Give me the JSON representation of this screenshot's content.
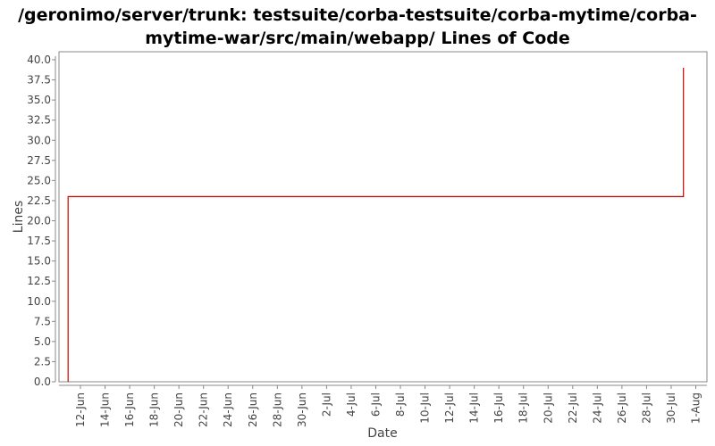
{
  "chart_data": {
    "type": "line",
    "title_line1": "/geronimo/server/trunk: testsuite/corba-testsuite/corba-mytime/corba-",
    "title_line2": "mytime-war/src/main/webapp/ Lines of Code",
    "xlabel": "Date",
    "ylabel": "Lines",
    "ylim": [
      0,
      40
    ],
    "yticks": [
      "0.0",
      "2.5",
      "5.0",
      "7.5",
      "10.0",
      "12.5",
      "15.0",
      "17.5",
      "20.0",
      "22.5",
      "25.0",
      "27.5",
      "30.0",
      "32.5",
      "35.0",
      "37.5",
      "40.0"
    ],
    "xticks": [
      "12-Jun",
      "14-Jun",
      "16-Jun",
      "18-Jun",
      "20-Jun",
      "22-Jun",
      "24-Jun",
      "26-Jun",
      "28-Jun",
      "30-Jun",
      "2-Jul",
      "4-Jul",
      "6-Jul",
      "8-Jul",
      "10-Jul",
      "12-Jul",
      "14-Jul",
      "16-Jul",
      "18-Jul",
      "20-Jul",
      "22-Jul",
      "24-Jul",
      "26-Jul",
      "28-Jul",
      "30-Jul",
      "1-Aug"
    ],
    "series": [
      {
        "color": "#cc0000",
        "step": true,
        "points": [
          {
            "x": "11-Jun",
            "y": 0
          },
          {
            "x": "11-Jun",
            "y": 23
          },
          {
            "x": "31-Jul",
            "y": 23
          },
          {
            "x": "31-Jul",
            "y": 39
          }
        ]
      }
    ],
    "grid": false
  }
}
